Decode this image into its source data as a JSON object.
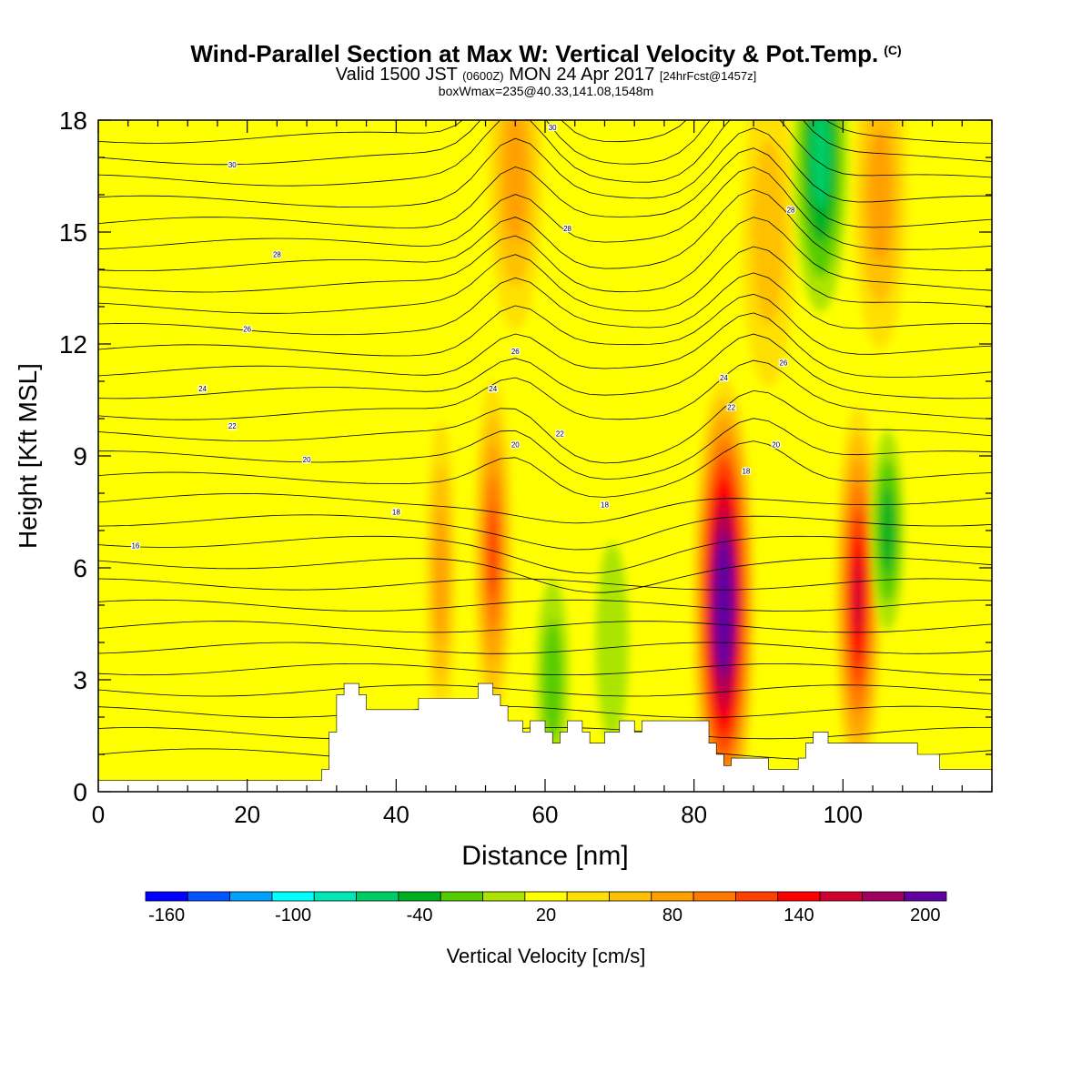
{
  "header": {
    "title": "Wind-Parallel Section at Max W: Vertical Velocity & Pot.Temp.",
    "title_unit": "(C)",
    "valid_prefix": "Valid 1500 JST",
    "valid_utc": "(0600Z)",
    "valid_date": "MON 24 Apr 2017",
    "forecast": "[24hrFcst@1457z]",
    "box_info": "boxWmax=235@40.33,141.08,1548m"
  },
  "chart_data": {
    "type": "heatmap",
    "xlabel": "Distance [nm]",
    "ylabel": "Height [Kft MSL]",
    "xlim": [
      0,
      120
    ],
    "ylim": [
      0,
      18
    ],
    "xticks": [
      0,
      20,
      40,
      60,
      80,
      100
    ],
    "yticks": [
      0,
      3,
      6,
      9,
      12,
      15,
      18
    ],
    "colorbar": {
      "label": "Vertical Velocity [cm/s]",
      "ticks": [
        "-160",
        "-100",
        "-40",
        "20",
        "80",
        "140",
        "200"
      ],
      "colors": [
        "#0000ff",
        "#0055ff",
        "#00a0ff",
        "#00ffff",
        "#00e6b4",
        "#00cc66",
        "#00b020",
        "#55cc00",
        "#aae400",
        "#ffff00",
        "#ffe000",
        "#ffc000",
        "#ffa000",
        "#ff7800",
        "#ff4000",
        "#ff0000",
        "#d00030",
        "#a00060",
        "#6000a0"
      ]
    },
    "background_w": 5,
    "w_cells": [
      {
        "x": 46,
        "y": 5.8,
        "w": 70,
        "layer": "core"
      },
      {
        "x": 53,
        "y": 6.4,
        "w": 110,
        "layer": "core"
      },
      {
        "x": 84,
        "y": 5.0,
        "w": 220,
        "layer": "core"
      },
      {
        "x": 102,
        "y": 5.2,
        "w": 140,
        "layer": "core"
      },
      {
        "x": 56,
        "y": 16.5,
        "w": 60,
        "layer": "upper"
      },
      {
        "x": 90,
        "y": 15.0,
        "w": 50,
        "layer": "upper"
      },
      {
        "x": 105,
        "y": 16.0,
        "w": 60,
        "layer": "upper"
      },
      {
        "x": 97,
        "y": 17.0,
        "w": -80,
        "layer": "upper"
      },
      {
        "x": 61,
        "y": 3.0,
        "w": -25,
        "layer": "low"
      },
      {
        "x": 69,
        "y": 4.0,
        "w": -20,
        "layer": "low"
      },
      {
        "x": 106,
        "y": 7.0,
        "w": -50,
        "layer": "low"
      }
    ],
    "theta_labels": [
      {
        "x": 18,
        "y": 16.8,
        "t": "30"
      },
      {
        "x": 24,
        "y": 14.4,
        "t": "28"
      },
      {
        "x": 20,
        "y": 12.4,
        "t": "26"
      },
      {
        "x": 14,
        "y": 10.8,
        "t": "24"
      },
      {
        "x": 18,
        "y": 9.8,
        "t": "22"
      },
      {
        "x": 28,
        "y": 8.9,
        "t": "20"
      },
      {
        "x": 40,
        "y": 7.5,
        "t": "18"
      },
      {
        "x": 5,
        "y": 6.6,
        "t": "16"
      },
      {
        "x": 61,
        "y": 17.8,
        "t": "30"
      },
      {
        "x": 63,
        "y": 15.1,
        "t": "28"
      },
      {
        "x": 56,
        "y": 11.8,
        "t": "26"
      },
      {
        "x": 53,
        "y": 10.8,
        "t": "24"
      },
      {
        "x": 62,
        "y": 9.6,
        "t": "22"
      },
      {
        "x": 56,
        "y": 9.3,
        "t": "20"
      },
      {
        "x": 68,
        "y": 7.7,
        "t": "18"
      },
      {
        "x": 93,
        "y": 15.6,
        "t": "28"
      },
      {
        "x": 92,
        "y": 11.5,
        "t": "26"
      },
      {
        "x": 84,
        "y": 11.1,
        "t": "24"
      },
      {
        "x": 85,
        "y": 10.3,
        "t": "22"
      },
      {
        "x": 91,
        "y": 9.3,
        "t": "20"
      },
      {
        "x": 87,
        "y": 8.6,
        "t": "18"
      }
    ],
    "terrain": [
      [
        0,
        0.3
      ],
      [
        30,
        0.3
      ],
      [
        30,
        0.6
      ],
      [
        31,
        0.6
      ],
      [
        31,
        1.6
      ],
      [
        32,
        1.6
      ],
      [
        32,
        2.6
      ],
      [
        33,
        2.6
      ],
      [
        33,
        2.9
      ],
      [
        35,
        2.9
      ],
      [
        35,
        2.6
      ],
      [
        36,
        2.6
      ],
      [
        36,
        2.2
      ],
      [
        43,
        2.2
      ],
      [
        43,
        2.5
      ],
      [
        51,
        2.5
      ],
      [
        51,
        2.9
      ],
      [
        53,
        2.9
      ],
      [
        53,
        2.6
      ],
      [
        54,
        2.6
      ],
      [
        54,
        2.3
      ],
      [
        55,
        2.3
      ],
      [
        55,
        1.9
      ],
      [
        57,
        1.9
      ],
      [
        57,
        1.6
      ],
      [
        58,
        1.6
      ],
      [
        58,
        1.9
      ],
      [
        60,
        1.9
      ],
      [
        60,
        1.6
      ],
      [
        61,
        1.6
      ],
      [
        61,
        1.3
      ],
      [
        62,
        1.3
      ],
      [
        62,
        1.6
      ],
      [
        63,
        1.6
      ],
      [
        63,
        1.9
      ],
      [
        65,
        1.9
      ],
      [
        65,
        1.6
      ],
      [
        66,
        1.6
      ],
      [
        66,
        1.3
      ],
      [
        68,
        1.3
      ],
      [
        68,
        1.6
      ],
      [
        70,
        1.6
      ],
      [
        70,
        1.9
      ],
      [
        72,
        1.9
      ],
      [
        72,
        1.6
      ],
      [
        73,
        1.6
      ],
      [
        73,
        1.9
      ],
      [
        82,
        1.9
      ],
      [
        82,
        1.3
      ],
      [
        83,
        1.3
      ],
      [
        83,
        1.0
      ],
      [
        84,
        1.0
      ],
      [
        84,
        0.7
      ],
      [
        85,
        0.7
      ],
      [
        85,
        0.9
      ],
      [
        90,
        0.9
      ],
      [
        90,
        0.6
      ],
      [
        94,
        0.6
      ],
      [
        94,
        0.9
      ],
      [
        95,
        0.9
      ],
      [
        95,
        1.3
      ],
      [
        96,
        1.3
      ],
      [
        96,
        1.6
      ],
      [
        98,
        1.6
      ],
      [
        98,
        1.3
      ],
      [
        110,
        1.3
      ],
      [
        110,
        1.0
      ],
      [
        113,
        1.0
      ],
      [
        113,
        0.6
      ],
      [
        120,
        0.6
      ],
      [
        120,
        0.3
      ]
    ]
  }
}
